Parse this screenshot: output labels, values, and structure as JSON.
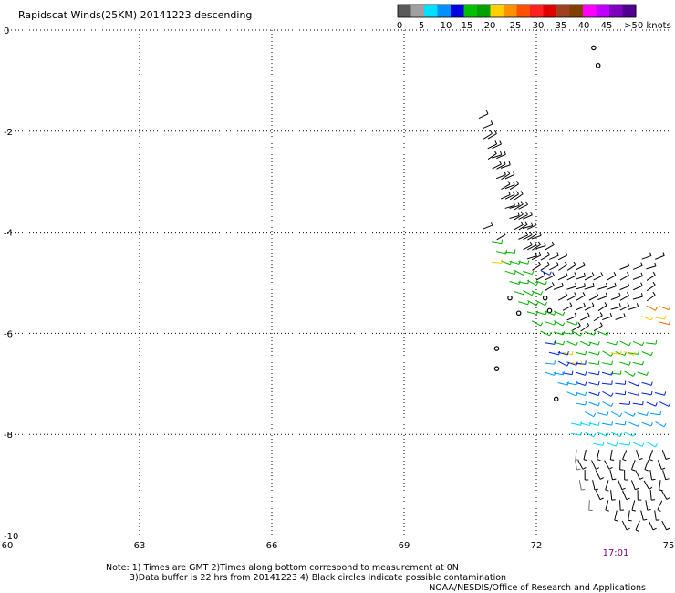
{
  "chart_data": {
    "type": "scatter",
    "title": "Rapidscat Winds(25KM) 20141223 descending",
    "xlim": [
      60,
      75
    ],
    "ylim": [
      -10,
      0
    ],
    "x_ticks": [
      60,
      63,
      66,
      69,
      72,
      75
    ],
    "y_ticks": [
      0,
      -2,
      -4,
      -6,
      -8,
      -10
    ],
    "grid": true,
    "colorbar": {
      "labels": [
        "0",
        "5",
        "10",
        "15",
        "20",
        "25",
        "30",
        "35",
        "40",
        "45",
        ">50 knots"
      ],
      "colors": [
        "#5a5a5a",
        "#a0a0a0",
        "#00e0ff",
        "#0090ff",
        "#0000e0",
        "#00c000",
        "#00a000",
        "#ffd000",
        "#ff9000",
        "#ff5000",
        "#ff2020",
        "#e00000",
        "#a04020",
        "#804000",
        "#ff00ff",
        "#c000ff",
        "#8000c0",
        "#500090"
      ]
    },
    "time_labels": [
      {
        "x": 73.8,
        "text": "17:01"
      }
    ],
    "wind_bands": [
      {
        "name": "black",
        "color": "#000000",
        "rows": [
          {
            "lat": -1.7,
            "lons": [
              70.8
            ]
          },
          {
            "lat": -1.9,
            "lons": [
              70.9
            ]
          },
          {
            "lat": -2.1,
            "lons": [
              70.9,
              71.0
            ]
          },
          {
            "lat": -2.3,
            "lons": [
              71.0,
              71.1
            ]
          },
          {
            "lat": -2.5,
            "lons": [
              71.0,
              71.1,
              71.2
            ]
          },
          {
            "lat": -2.7,
            "lons": [
              71.1,
              71.2,
              71.3
            ]
          },
          {
            "lat": -2.9,
            "lons": [
              71.2,
              71.3,
              71.4
            ]
          },
          {
            "lat": -3.1,
            "lons": [
              71.3,
              71.4,
              71.5
            ]
          },
          {
            "lat": -3.3,
            "lons": [
              71.3,
              71.4,
              71.5,
              71.6
            ]
          },
          {
            "lat": -3.5,
            "lons": [
              71.4,
              71.5,
              71.6,
              71.7
            ]
          },
          {
            "lat": -3.7,
            "lons": [
              71.5,
              71.6,
              71.7,
              71.8
            ]
          },
          {
            "lat": -3.9,
            "lons": [
              70.9,
              71.6,
              71.7,
              71.8,
              71.9
            ]
          },
          {
            "lat": -4.1,
            "lons": [
              71.2,
              71.7,
              71.8,
              71.9,
              72.0
            ]
          },
          {
            "lat": -4.3,
            "lons": [
              71.8,
              71.9,
              72.0,
              72.1,
              72.3
            ]
          },
          {
            "lat": -4.5,
            "lons": [
              71.9,
              72.0,
              72.2,
              72.4,
              72.6,
              74.5,
              74.8
            ]
          },
          {
            "lat": -4.7,
            "lons": [
              72.0,
              72.2,
              72.4,
              72.6,
              72.8,
              73.0,
              74.0,
              74.3,
              74.6
            ]
          },
          {
            "lat": -4.9,
            "lons": [
              72.1,
              72.3,
              72.6,
              72.8,
              73.0,
              73.2,
              73.4,
              73.7,
              74.0,
              74.3,
              74.6
            ]
          },
          {
            "lat": -5.1,
            "lons": [
              72.3,
              72.5,
              72.8,
              73.0,
              73.2,
              73.5,
              73.7,
              74.0,
              74.3,
              74.6
            ]
          },
          {
            "lat": -5.3,
            "lons": [
              72.6,
              72.8,
              73.0,
              73.3,
              73.5,
              73.8,
              74.0,
              74.3,
              74.6
            ]
          },
          {
            "lat": -5.5,
            "lons": [
              72.7,
              73.0,
              73.2,
              73.5,
              73.8,
              74.0,
              74.2
            ]
          },
          {
            "lat": -5.7,
            "lons": [
              72.8,
              73.1,
              73.4,
              73.6,
              73.9
            ]
          },
          {
            "lat": -5.9,
            "lons": [
              72.9,
              73.1,
              73.4
            ]
          },
          {
            "lat": -8.4,
            "lons": [
              73.1,
              73.4,
              73.7,
              74.0,
              74.3,
              74.6,
              74.9
            ]
          },
          {
            "lat": -8.6,
            "lons": [
              73.0,
              73.3,
              73.6,
              73.9,
              74.2,
              74.5,
              74.8
            ]
          },
          {
            "lat": -8.8,
            "lons": [
              73.1,
              73.4,
              73.7,
              74.0,
              74.3,
              74.6,
              74.9
            ]
          },
          {
            "lat": -9.0,
            "lons": [
              73.3,
              73.6,
              73.9,
              74.2,
              74.5,
              74.8
            ]
          },
          {
            "lat": -9.2,
            "lons": [
              73.4,
              73.7,
              74.0,
              74.3,
              74.6,
              74.9
            ]
          },
          {
            "lat": -9.4,
            "lons": [
              73.6,
              73.9,
              74.2,
              74.5,
              74.8
            ]
          },
          {
            "lat": -9.6,
            "lons": [
              73.8,
              74.1,
              74.4,
              74.7
            ]
          },
          {
            "lat": -9.8,
            "lons": [
              74.0,
              74.3,
              74.6,
              74.9
            ]
          }
        ]
      },
      {
        "name": "green",
        "color": "#00b000",
        "rows": [
          {
            "lat": -4.2,
            "lons": [
              71.1
            ]
          },
          {
            "lat": -4.4,
            "lons": [
              71.2,
              71.4
            ]
          },
          {
            "lat": -4.6,
            "lons": [
              71.3,
              71.5,
              71.7
            ]
          },
          {
            "lat": -4.8,
            "lons": [
              71.4,
              71.6,
              71.8
            ]
          },
          {
            "lat": -5.0,
            "lons": [
              71.5,
              71.7,
              71.9,
              72.1
            ]
          },
          {
            "lat": -5.2,
            "lons": [
              71.6,
              71.8,
              72.0
            ]
          },
          {
            "lat": -5.4,
            "lons": [
              71.7,
              71.9,
              72.1
            ]
          },
          {
            "lat": -5.6,
            "lons": [
              71.9,
              72.1,
              72.3,
              72.5
            ]
          },
          {
            "lat": -5.8,
            "lons": [
              72.0,
              72.3,
              72.5,
              72.8
            ]
          },
          {
            "lat": -6.0,
            "lons": [
              72.2,
              72.5,
              72.7,
              72.9,
              73.2,
              73.5
            ]
          },
          {
            "lat": -6.2,
            "lons": [
              72.5,
              72.8,
              73.1,
              73.3,
              73.7,
              74.0,
              74.3,
              74.6
            ]
          },
          {
            "lat": -6.4,
            "lons": [
              73.0,
              73.3,
              73.6,
              73.9,
              74.2,
              74.5
            ]
          },
          {
            "lat": -6.6,
            "lons": [
              73.3,
              73.6,
              74.0,
              74.3
            ]
          },
          {
            "lat": -6.8,
            "lons": [
              73.8,
              74.1,
              74.4
            ]
          }
        ]
      },
      {
        "name": "yellow",
        "color": "#ffc800",
        "rows": [
          {
            "lat": -4.6,
            "lons": [
              71.1
            ]
          },
          {
            "lat": -6.4,
            "lons": [
              72.7,
              73.8,
              74.1
            ]
          },
          {
            "lat": -6.6,
            "lons": [
              72.9
            ]
          },
          {
            "lat": -5.7,
            "lons": [
              74.5,
              74.8
            ]
          }
        ]
      },
      {
        "name": "orange",
        "color": "#ff6a00",
        "rows": [
          {
            "lat": -5.5,
            "lons": [
              74.6,
              74.9
            ]
          },
          {
            "lat": -5.8,
            "lons": [
              74.9
            ]
          }
        ]
      },
      {
        "name": "blue",
        "color": "#0020e0",
        "rows": [
          {
            "lat": -4.8,
            "lons": [
              72.2
            ]
          },
          {
            "lat": -6.2,
            "lons": [
              72.3
            ]
          },
          {
            "lat": -6.4,
            "lons": [
              72.4,
              72.6
            ]
          },
          {
            "lat": -6.6,
            "lons": [
              72.6,
              72.8,
              73.0
            ]
          },
          {
            "lat": -6.8,
            "lons": [
              72.7,
              73.0,
              73.3,
              73.6
            ]
          },
          {
            "lat": -7.0,
            "lons": [
              73.0,
              73.3,
              73.6,
              73.9,
              74.2,
              74.5
            ]
          },
          {
            "lat": -7.2,
            "lons": [
              73.3,
              73.6,
              73.9,
              74.2,
              74.5,
              74.8
            ]
          },
          {
            "lat": -7.4,
            "lons": [
              74.0,
              74.3,
              74.6,
              74.9
            ]
          }
        ]
      },
      {
        "name": "lightblue",
        "color": "#0098ff",
        "rows": [
          {
            "lat": -6.6,
            "lons": [
              72.3
            ]
          },
          {
            "lat": -6.8,
            "lons": [
              72.3,
              72.5
            ]
          },
          {
            "lat": -7.0,
            "lons": [
              72.6,
              72.8
            ]
          },
          {
            "lat": -7.2,
            "lons": [
              72.8,
              73.0
            ]
          },
          {
            "lat": -7.4,
            "lons": [
              73.0,
              73.3,
              73.6
            ]
          },
          {
            "lat": -7.6,
            "lons": [
              73.2,
              73.5,
              73.8,
              74.1,
              74.4,
              74.7
            ]
          },
          {
            "lat": -7.8,
            "lons": [
              73.6,
              73.9,
              74.2,
              74.5,
              74.8
            ]
          }
        ]
      },
      {
        "name": "cyan",
        "color": "#00d8f0",
        "rows": [
          {
            "lat": -7.8,
            "lons": [
              72.9,
              73.1,
              73.3
            ]
          },
          {
            "lat": -8.0,
            "lons": [
              72.9,
              73.2,
              73.5,
              73.8,
              74.1
            ]
          },
          {
            "lat": -8.2,
            "lons": [
              73.4,
              73.7,
              74.0,
              74.3,
              74.6
            ]
          }
        ]
      },
      {
        "name": "gray",
        "color": "#707070",
        "rows": [
          {
            "lat": -8.4,
            "lons": [
              72.9
            ]
          },
          {
            "lat": -8.6,
            "lons": [
              72.9
            ]
          },
          {
            "lat": -9.0,
            "lons": [
              73.0
            ]
          },
          {
            "lat": -9.4,
            "lons": [
              73.2
            ]
          }
        ]
      }
    ],
    "land_marks": [
      {
        "lon": 73.4,
        "lat": -0.7
      },
      {
        "lon": 73.3,
        "lat": -0.35
      },
      {
        "lon": 71.4,
        "lat": -5.3
      },
      {
        "lon": 71.6,
        "lat": -5.6
      },
      {
        "lon": 72.2,
        "lat": -5.3
      },
      {
        "lon": 72.3,
        "lat": -5.55
      },
      {
        "lon": 71.1,
        "lat": -6.3
      },
      {
        "lon": 71.1,
        "lat": -6.7
      },
      {
        "lon": 72.45,
        "lat": -7.3
      }
    ]
  },
  "notes": {
    "line1": "Note: 1) Times are GMT 2)Times along bottom correspond to measurement at 0N",
    "line2": "3)Data buffer is 22 hrs from 20141223 4) Black circles indicate possible contamination",
    "credit": "NOAA/NESDIS/Office of Research and Applications"
  }
}
